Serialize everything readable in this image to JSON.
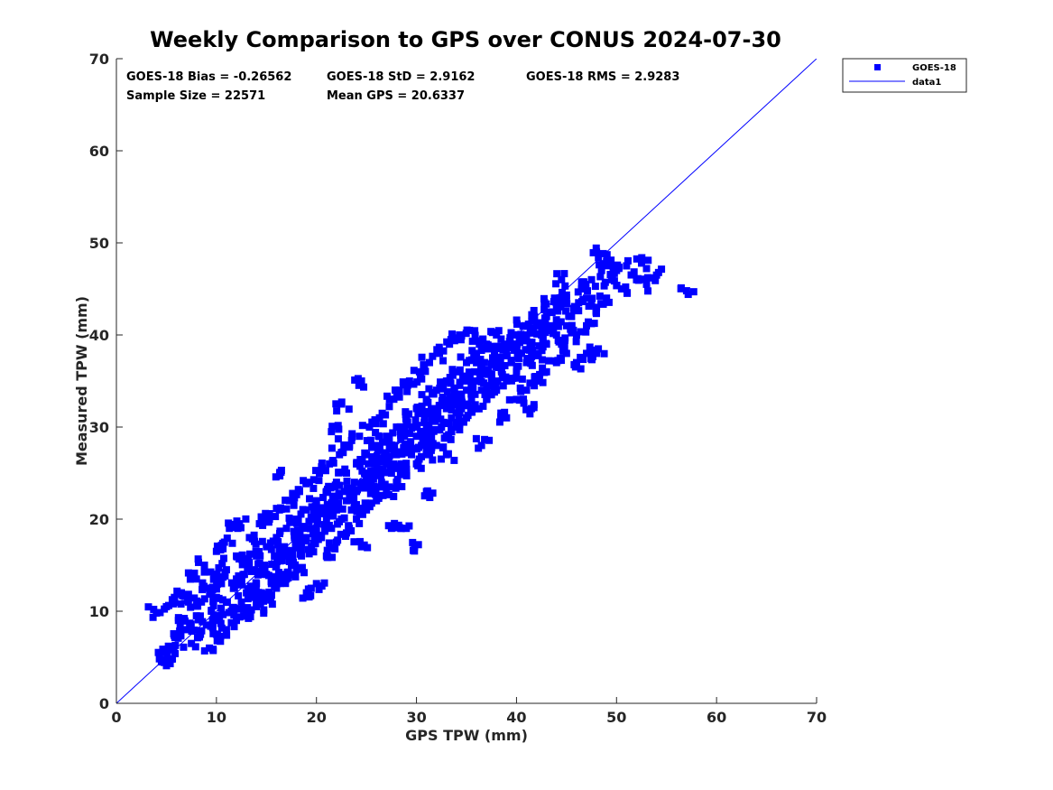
{
  "chart_data": {
    "type": "scatter",
    "title": "Weekly Comparison to GPS over CONUS 2024-07-30",
    "xlabel": "GPS TPW (mm)",
    "ylabel": "Measured TPW (mm)",
    "xlim": [
      0,
      70
    ],
    "ylim": [
      0,
      70
    ],
    "xticks": [
      "0",
      "10",
      "20",
      "30",
      "40",
      "50",
      "60",
      "70"
    ],
    "yticks": [
      "0",
      "10",
      "20",
      "30",
      "40",
      "50",
      "60",
      "70"
    ],
    "grid": false,
    "legend_position": "outside-top-right",
    "legend": [
      "GOES-18",
      "data1"
    ],
    "colors": {
      "marker": "#0000ff",
      "line": "#0000ff",
      "axis": "#262626"
    },
    "stats": {
      "bias": "GOES-18 Bias = -0.26562",
      "std": "GOES-18 StD = 2.9162",
      "rms": "GOES-18 RMS = 2.9283",
      "sample_size": "Sample Size = 22571",
      "mean_gps": "Mean GPS = 20.6337"
    },
    "series": [
      {
        "name": "GOES-18",
        "kind": "scatter",
        "note": "representative points of the dense cloud (22571 samples)",
        "points": [
          [
            4,
            9.8
          ],
          [
            4.5,
            4.5
          ],
          [
            4.8,
            5.5
          ],
          [
            5,
            10.5
          ],
          [
            5.2,
            6.2
          ],
          [
            5.5,
            4.8
          ],
          [
            5.8,
            11.5
          ],
          [
            6,
            7.5
          ],
          [
            6.2,
            9
          ],
          [
            6.5,
            12
          ],
          [
            7,
            8
          ],
          [
            7.2,
            11
          ],
          [
            7.5,
            6.5
          ],
          [
            8,
            9.5
          ],
          [
            8,
            13.5
          ],
          [
            8.3,
            7.2
          ],
          [
            8.5,
            11
          ],
          [
            8.8,
            15
          ],
          [
            9,
            8.5
          ],
          [
            9,
            12.5
          ],
          [
            9.3,
            6
          ],
          [
            9.5,
            10
          ],
          [
            9.8,
            14
          ],
          [
            10,
            7.5
          ],
          [
            10,
            11.5
          ],
          [
            10,
            16.5
          ],
          [
            10.3,
            9
          ],
          [
            10.5,
            13
          ],
          [
            10.8,
            17.5
          ],
          [
            11,
            8
          ],
          [
            11,
            11
          ],
          [
            11,
            14.5
          ],
          [
            11.3,
            19
          ],
          [
            11.5,
            10
          ],
          [
            11.8,
            12.5
          ],
          [
            12,
            9
          ],
          [
            12,
            13.5
          ],
          [
            12,
            16
          ],
          [
            12.3,
            19.5
          ],
          [
            12.5,
            11
          ],
          [
            12.8,
            14
          ],
          [
            13,
            10
          ],
          [
            13,
            12
          ],
          [
            13,
            15.5
          ],
          [
            13.3,
            18
          ],
          [
            13.5,
            11.5
          ],
          [
            13.8,
            14.5
          ],
          [
            14,
            10.5
          ],
          [
            14,
            13
          ],
          [
            14,
            16
          ],
          [
            14.3,
            19.5
          ],
          [
            14.5,
            12
          ],
          [
            14.8,
            15
          ],
          [
            15,
            11.5
          ],
          [
            15,
            14
          ],
          [
            15,
            17
          ],
          [
            15.3,
            20
          ],
          [
            15.5,
            13
          ],
          [
            15.8,
            16
          ],
          [
            16,
            12.5
          ],
          [
            16,
            15
          ],
          [
            16,
            18
          ],
          [
            16.3,
            21
          ],
          [
            16.5,
            14
          ],
          [
            16.5,
            25.3
          ],
          [
            16.8,
            17
          ],
          [
            17,
            13.5
          ],
          [
            17,
            16
          ],
          [
            17,
            19
          ],
          [
            17.3,
            22
          ],
          [
            17.5,
            15
          ],
          [
            17.8,
            18
          ],
          [
            18,
            14.5
          ],
          [
            18,
            17
          ],
          [
            18,
            20
          ],
          [
            18.3,
            23
          ],
          [
            18.5,
            16
          ],
          [
            18.8,
            19
          ],
          [
            19,
            12
          ],
          [
            19,
            18
          ],
          [
            19,
            21
          ],
          [
            19.3,
            24
          ],
          [
            19.5,
            17
          ],
          [
            19.8,
            20
          ],
          [
            20,
            13
          ],
          [
            20,
            19
          ],
          [
            20,
            22
          ],
          [
            20.3,
            25
          ],
          [
            20.5,
            18
          ],
          [
            20.8,
            21
          ],
          [
            21,
            16
          ],
          [
            21,
            20
          ],
          [
            21,
            23
          ],
          [
            21.3,
            26
          ],
          [
            21.5,
            29.5
          ],
          [
            21.5,
            19
          ],
          [
            21.8,
            22
          ],
          [
            22,
            17.5
          ],
          [
            22,
            21
          ],
          [
            22,
            24
          ],
          [
            22.3,
            27
          ],
          [
            22.5,
            20
          ],
          [
            22.5,
            32.5
          ],
          [
            22.8,
            23
          ],
          [
            23,
            18.5
          ],
          [
            23,
            22
          ],
          [
            23,
            25
          ],
          [
            23.3,
            28
          ],
          [
            23.5,
            21
          ],
          [
            23.8,
            24
          ],
          [
            24,
            20
          ],
          [
            24,
            23
          ],
          [
            24,
            26
          ],
          [
            24.3,
            29
          ],
          [
            24.5,
            17
          ],
          [
            24.5,
            35
          ],
          [
            24.8,
            25
          ],
          [
            25,
            21
          ],
          [
            25,
            24
          ],
          [
            25,
            27
          ],
          [
            25.3,
            30
          ],
          [
            25.5,
            23
          ],
          [
            25.8,
            26
          ],
          [
            26,
            22
          ],
          [
            26,
            25
          ],
          [
            26,
            28
          ],
          [
            26.3,
            31
          ],
          [
            26.5,
            24
          ],
          [
            26.8,
            27
          ],
          [
            27,
            23
          ],
          [
            27,
            26
          ],
          [
            27,
            29
          ],
          [
            27.3,
            33
          ],
          [
            27.5,
            19
          ],
          [
            27.5,
            25
          ],
          [
            27.8,
            28
          ],
          [
            28,
            24
          ],
          [
            28,
            27
          ],
          [
            28,
            30
          ],
          [
            28.3,
            34
          ],
          [
            28.5,
            19
          ],
          [
            28.5,
            26
          ],
          [
            28.8,
            29
          ],
          [
            29,
            25
          ],
          [
            29,
            28
          ],
          [
            29,
            31
          ],
          [
            29.3,
            35
          ],
          [
            29.5,
            27
          ],
          [
            29.8,
            17
          ],
          [
            29.8,
            30
          ],
          [
            30,
            26
          ],
          [
            30,
            29
          ],
          [
            30,
            32
          ],
          [
            30.3,
            36
          ],
          [
            30.5,
            28
          ],
          [
            30.8,
            31
          ],
          [
            31,
            23
          ],
          [
            31,
            27
          ],
          [
            31,
            30
          ],
          [
            31,
            33
          ],
          [
            31.3,
            37
          ],
          [
            31.5,
            29
          ],
          [
            31.8,
            32
          ],
          [
            32,
            28
          ],
          [
            32,
            31
          ],
          [
            32,
            34
          ],
          [
            32.3,
            38
          ],
          [
            32.5,
            30
          ],
          [
            32.8,
            33
          ],
          [
            33,
            27
          ],
          [
            33,
            29
          ],
          [
            33,
            32
          ],
          [
            33,
            35
          ],
          [
            33.3,
            39
          ],
          [
            33.5,
            31
          ],
          [
            33.8,
            34
          ],
          [
            34,
            30
          ],
          [
            34,
            33
          ],
          [
            34,
            36
          ],
          [
            34.3,
            40
          ],
          [
            34.5,
            32
          ],
          [
            34.8,
            35
          ],
          [
            35,
            31
          ],
          [
            35,
            34
          ],
          [
            35,
            37
          ],
          [
            35.3,
            40.5
          ],
          [
            35.5,
            33
          ],
          [
            35.8,
            36
          ],
          [
            36,
            32
          ],
          [
            36,
            35
          ],
          [
            36,
            38
          ],
          [
            36.3,
            39
          ],
          [
            36.5,
            28
          ],
          [
            36.5,
            34
          ],
          [
            36.8,
            37
          ],
          [
            37,
            33
          ],
          [
            37,
            36
          ],
          [
            37,
            39
          ],
          [
            37.5,
            35
          ],
          [
            37.8,
            38
          ],
          [
            38,
            34
          ],
          [
            38,
            37
          ],
          [
            38,
            40
          ],
          [
            38.5,
            36
          ],
          [
            38.8,
            39
          ],
          [
            39,
            31
          ],
          [
            39,
            35
          ],
          [
            39,
            38
          ],
          [
            39.5,
            37
          ],
          [
            39.8,
            40
          ],
          [
            40,
            33
          ],
          [
            40,
            36
          ],
          [
            40,
            39
          ],
          [
            40.5,
            38
          ],
          [
            40.8,
            41
          ],
          [
            41,
            34
          ],
          [
            41,
            37
          ],
          [
            41,
            40
          ],
          [
            41.5,
            32
          ],
          [
            41.5,
            39
          ],
          [
            41.8,
            42
          ],
          [
            42,
            35
          ],
          [
            42,
            38
          ],
          [
            42,
            41
          ],
          [
            42.5,
            40
          ],
          [
            42.8,
            43.5
          ],
          [
            43,
            36
          ],
          [
            43,
            39
          ],
          [
            43,
            42
          ],
          [
            43.5,
            41
          ],
          [
            43.8,
            44
          ],
          [
            44,
            37
          ],
          [
            44,
            40
          ],
          [
            44,
            43
          ],
          [
            44.5,
            39
          ],
          [
            44.5,
            46
          ],
          [
            45,
            38
          ],
          [
            45,
            41
          ],
          [
            45,
            44
          ],
          [
            45.5,
            42
          ],
          [
            46,
            37
          ],
          [
            46,
            40
          ],
          [
            46,
            43
          ],
          [
            46.5,
            45
          ],
          [
            47,
            38
          ],
          [
            47,
            41
          ],
          [
            47,
            44
          ],
          [
            47.5,
            46
          ],
          [
            48,
            38
          ],
          [
            48,
            43
          ],
          [
            48,
            49
          ],
          [
            48.5,
            47
          ],
          [
            49,
            44
          ],
          [
            49,
            48
          ],
          [
            49.5,
            46
          ],
          [
            50,
            47
          ],
          [
            50.5,
            45
          ],
          [
            51,
            47.5
          ],
          [
            52,
            46
          ],
          [
            52.5,
            47.8
          ],
          [
            53,
            45.5
          ],
          [
            54,
            46.5
          ],
          [
            57,
            44.8
          ]
        ]
      },
      {
        "name": "data1",
        "kind": "line",
        "x": [
          0,
          70
        ],
        "y": [
          0,
          70
        ]
      }
    ]
  }
}
